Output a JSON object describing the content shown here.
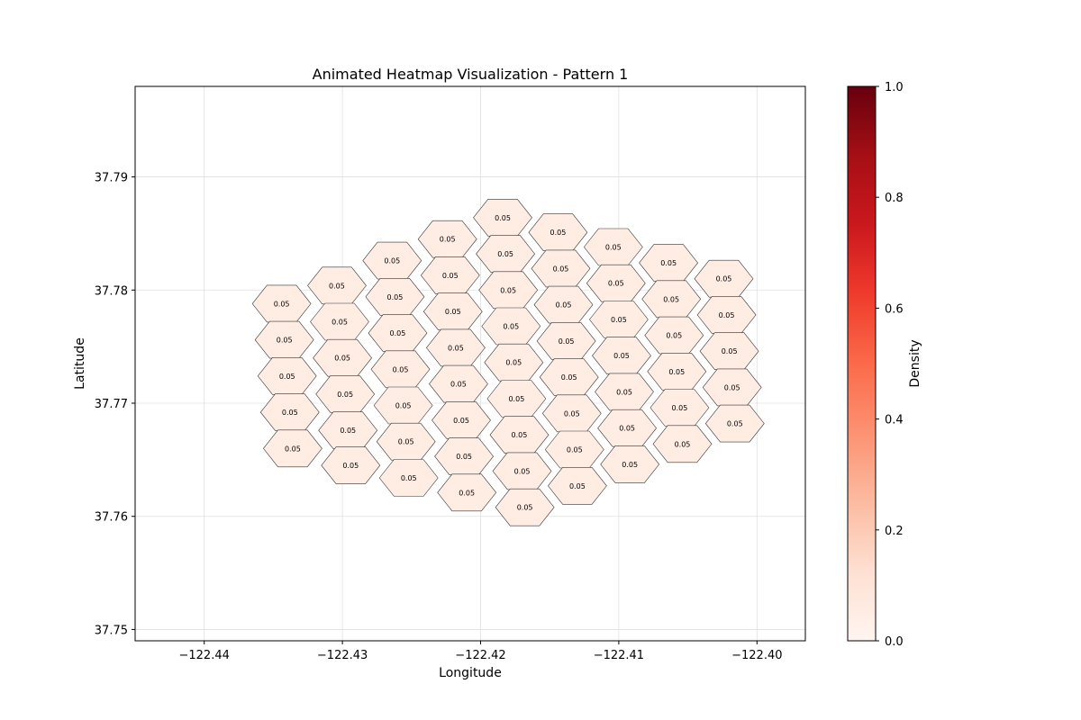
{
  "chart_data": {
    "type": "heatmap",
    "title": "Animated Heatmap Visualization - Pattern 1",
    "xlabel": "Longitude",
    "ylabel": "Latitude",
    "xlim": [
      -122.445,
      -122.3965
    ],
    "ylim": [
      37.749,
      37.798
    ],
    "xticks": [
      -122.44,
      -122.43,
      -122.42,
      -122.41,
      -122.4
    ],
    "xtick_labels": [
      "−122.44",
      "−122.43",
      "−122.42",
      "−122.41",
      "−122.40"
    ],
    "yticks": [
      37.75,
      37.76,
      37.77,
      37.78,
      37.79
    ],
    "ytick_labels": [
      "37.75",
      "37.76",
      "37.77",
      "37.78",
      "37.79"
    ],
    "grid": true,
    "colormap": "Reds",
    "colorbar": {
      "label": "Density",
      "range": [
        0.0,
        1.0
      ],
      "ticks": [
        0.0,
        0.2,
        0.4,
        0.6,
        0.8,
        1.0
      ],
      "tick_labels": [
        "0.0",
        "0.2",
        "0.4",
        "0.6",
        "0.8",
        "1.0"
      ]
    },
    "cell_label": "0.05",
    "cells": [
      {
        "lon": -122.4344,
        "lat": 37.7788,
        "value": 0.05
      },
      {
        "lon": -122.4342,
        "lat": 37.7756,
        "value": 0.05
      },
      {
        "lon": -122.434,
        "lat": 37.7724,
        "value": 0.05
      },
      {
        "lon": -122.4338,
        "lat": 37.7692,
        "value": 0.05
      },
      {
        "lon": -122.4336,
        "lat": 37.766,
        "value": 0.05
      },
      {
        "lon": -122.4304,
        "lat": 37.7804,
        "value": 0.05
      },
      {
        "lon": -122.4302,
        "lat": 37.7772,
        "value": 0.05
      },
      {
        "lon": -122.43,
        "lat": 37.774,
        "value": 0.05
      },
      {
        "lon": -122.4298,
        "lat": 37.7708,
        "value": 0.05
      },
      {
        "lon": -122.4296,
        "lat": 37.7676,
        "value": 0.05
      },
      {
        "lon": -122.4294,
        "lat": 37.7645,
        "value": 0.05
      },
      {
        "lon": -122.4264,
        "lat": 37.7826,
        "value": 0.05
      },
      {
        "lon": -122.4262,
        "lat": 37.7794,
        "value": 0.05
      },
      {
        "lon": -122.426,
        "lat": 37.7762,
        "value": 0.05
      },
      {
        "lon": -122.4258,
        "lat": 37.773,
        "value": 0.05
      },
      {
        "lon": -122.4256,
        "lat": 37.7698,
        "value": 0.05
      },
      {
        "lon": -122.4254,
        "lat": 37.7666,
        "value": 0.05
      },
      {
        "lon": -122.4252,
        "lat": 37.7634,
        "value": 0.05
      },
      {
        "lon": -122.4224,
        "lat": 37.7845,
        "value": 0.05
      },
      {
        "lon": -122.4222,
        "lat": 37.7813,
        "value": 0.05
      },
      {
        "lon": -122.422,
        "lat": 37.7781,
        "value": 0.05
      },
      {
        "lon": -122.4218,
        "lat": 37.7749,
        "value": 0.05
      },
      {
        "lon": -122.4216,
        "lat": 37.7717,
        "value": 0.05
      },
      {
        "lon": -122.4214,
        "lat": 37.7685,
        "value": 0.05
      },
      {
        "lon": -122.4212,
        "lat": 37.7653,
        "value": 0.05
      },
      {
        "lon": -122.421,
        "lat": 37.7621,
        "value": 0.05
      },
      {
        "lon": -122.4184,
        "lat": 37.7864,
        "value": 0.05
      },
      {
        "lon": -122.4182,
        "lat": 37.7832,
        "value": 0.05
      },
      {
        "lon": -122.418,
        "lat": 37.78,
        "value": 0.05
      },
      {
        "lon": -122.4178,
        "lat": 37.7768,
        "value": 0.05
      },
      {
        "lon": -122.4176,
        "lat": 37.7736,
        "value": 0.05
      },
      {
        "lon": -122.4174,
        "lat": 37.7704,
        "value": 0.05
      },
      {
        "lon": -122.4172,
        "lat": 37.7672,
        "value": 0.05
      },
      {
        "lon": -122.417,
        "lat": 37.764,
        "value": 0.05
      },
      {
        "lon": -122.4168,
        "lat": 37.7608,
        "value": 0.05
      },
      {
        "lon": -122.4144,
        "lat": 37.7851,
        "value": 0.05
      },
      {
        "lon": -122.4142,
        "lat": 37.7819,
        "value": 0.05
      },
      {
        "lon": -122.414,
        "lat": 37.7787,
        "value": 0.05
      },
      {
        "lon": -122.4138,
        "lat": 37.7755,
        "value": 0.05
      },
      {
        "lon": -122.4136,
        "lat": 37.7723,
        "value": 0.05
      },
      {
        "lon": -122.4134,
        "lat": 37.7691,
        "value": 0.05
      },
      {
        "lon": -122.4132,
        "lat": 37.7659,
        "value": 0.05
      },
      {
        "lon": -122.413,
        "lat": 37.7627,
        "value": 0.05
      },
      {
        "lon": -122.4104,
        "lat": 37.7838,
        "value": 0.05
      },
      {
        "lon": -122.4102,
        "lat": 37.7806,
        "value": 0.05
      },
      {
        "lon": -122.41,
        "lat": 37.7774,
        "value": 0.05
      },
      {
        "lon": -122.4098,
        "lat": 37.7742,
        "value": 0.05
      },
      {
        "lon": -122.4096,
        "lat": 37.771,
        "value": 0.05
      },
      {
        "lon": -122.4094,
        "lat": 37.7678,
        "value": 0.05
      },
      {
        "lon": -122.4092,
        "lat": 37.7646,
        "value": 0.05
      },
      {
        "lon": -122.4064,
        "lat": 37.7824,
        "value": 0.05
      },
      {
        "lon": -122.4062,
        "lat": 37.7792,
        "value": 0.05
      },
      {
        "lon": -122.406,
        "lat": 37.776,
        "value": 0.05
      },
      {
        "lon": -122.4058,
        "lat": 37.7728,
        "value": 0.05
      },
      {
        "lon": -122.4056,
        "lat": 37.7696,
        "value": 0.05
      },
      {
        "lon": -122.4054,
        "lat": 37.7664,
        "value": 0.05
      },
      {
        "lon": -122.4024,
        "lat": 37.781,
        "value": 0.05
      },
      {
        "lon": -122.4022,
        "lat": 37.7778,
        "value": 0.05
      },
      {
        "lon": -122.402,
        "lat": 37.7746,
        "value": 0.05
      },
      {
        "lon": -122.4018,
        "lat": 37.7714,
        "value": 0.05
      },
      {
        "lon": -122.4016,
        "lat": 37.7682,
        "value": 0.05
      }
    ]
  }
}
